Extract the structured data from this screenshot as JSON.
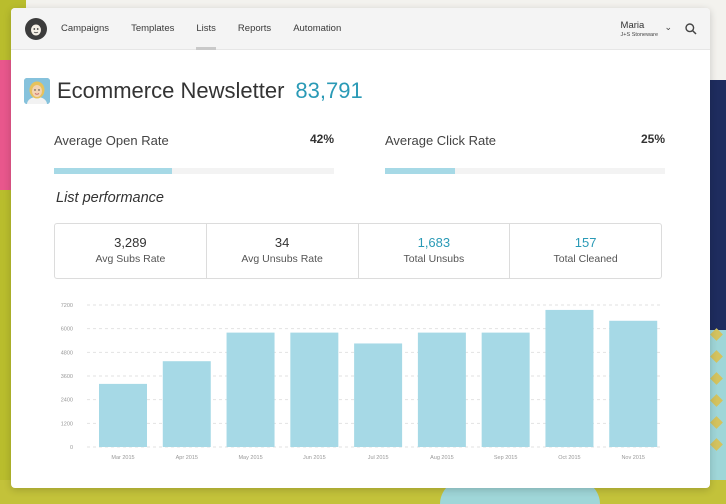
{
  "nav": {
    "items": [
      "Campaigns",
      "Templates",
      "Lists",
      "Reports",
      "Automation"
    ],
    "active": "Lists",
    "user_name": "Maria",
    "user_org": "J+S Stoneware"
  },
  "header": {
    "title": "Ecommerce Newsletter",
    "subscriber_count": "83,791"
  },
  "rates": [
    {
      "label": "Average Open Rate",
      "value": "42%",
      "fill": 0.42
    },
    {
      "label": "Average Click Rate",
      "value": "25%",
      "fill": 0.25
    }
  ],
  "performance": {
    "title": "List performance",
    "stats": [
      {
        "value": "3,289",
        "label": "Avg Subs Rate",
        "highlight": false
      },
      {
        "value": "34",
        "label": "Avg Unsubs Rate",
        "highlight": false
      },
      {
        "value": "1,683",
        "label": "Total Unsubs",
        "highlight": true
      },
      {
        "value": "157",
        "label": "Total Cleaned",
        "highlight": true
      }
    ]
  },
  "colors": {
    "accent": "#2a9ab6",
    "bar": "#a6d9e6"
  },
  "chart_data": {
    "type": "bar",
    "categories": [
      "Mar 2015",
      "Apr 2015",
      "May 2015",
      "Jun 2015",
      "Jul 2015",
      "Aug 2015",
      "Sep 2015",
      "Oct 2015",
      "Nov 2015"
    ],
    "values": [
      3200,
      4350,
      5800,
      5800,
      5250,
      5800,
      5800,
      6950,
      6400
    ],
    "yticks": [
      "0",
      "1200",
      "2400",
      "3600",
      "4800",
      "6000",
      "7200"
    ],
    "ylim": [
      0,
      7200
    ],
    "title": "",
    "xlabel": "",
    "ylabel": "",
    "grid": true
  }
}
